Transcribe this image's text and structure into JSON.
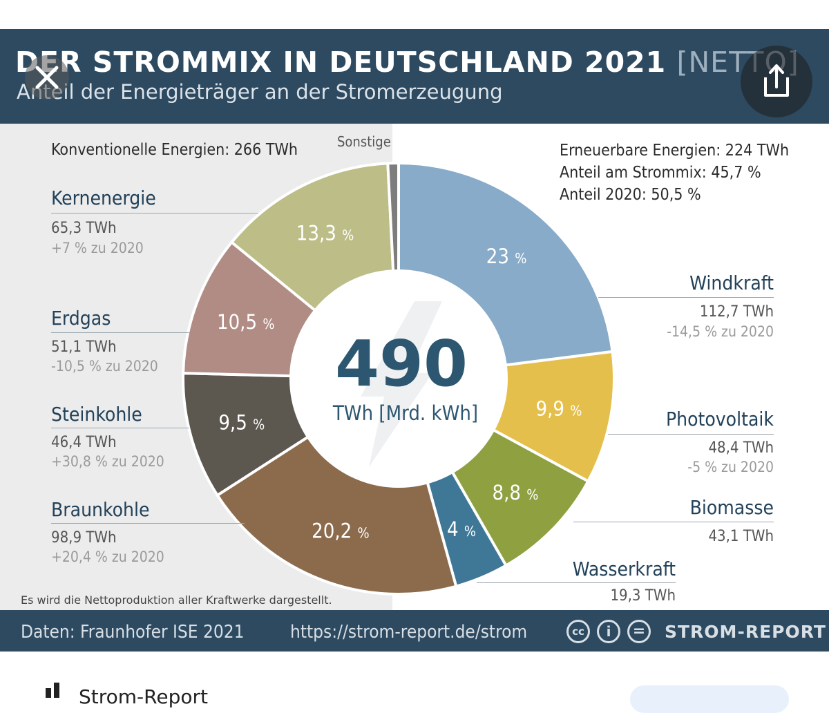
{
  "header": {
    "title": "DER STROMMIX IN DEUTSCHLAND 2021",
    "title_suffix": "[NETTO]",
    "subtitle": "Anteil der Energieträger an der Stromerzeugung"
  },
  "summary": {
    "conventional": "Konventionelle Energien: 266 TWh",
    "other_label": "Sonstige",
    "renewable": "Erneuerbare Energien: 224 TWh",
    "renewable_share": "Anteil am Strommix: 45,7 %",
    "renewable_share_2020": "Anteil 2020: 50,5 %"
  },
  "center": {
    "total": "490",
    "unit": "TWh [Mrd. kWh]"
  },
  "sources": {
    "kernenergie": {
      "name": "Kernenergie",
      "twh": "65,3 TWh",
      "change": "+7 % zu 2020"
    },
    "erdgas": {
      "name": "Erdgas",
      "twh": "51,1 TWh",
      "change": "-10,5 % zu 2020"
    },
    "steinkohle": {
      "name": "Steinkohle",
      "twh": "46,4 TWh",
      "change": "+30,8 % zu 2020"
    },
    "braunkohle": {
      "name": "Braunkohle",
      "twh": "98,9 TWh",
      "change": "+20,4 % zu 2020"
    },
    "windkraft": {
      "name": "Windkraft",
      "twh": "112,7 TWh",
      "change": "-14,5 % zu 2020"
    },
    "photovoltaik": {
      "name": "Photovoltaik",
      "twh": "48,4 TWh",
      "change": "-5 % zu 2020"
    },
    "biomasse": {
      "name": "Biomasse",
      "twh": "43,1 TWh"
    },
    "wasserkraft": {
      "name": "Wasserkraft",
      "twh": "19,3 TWh"
    }
  },
  "note": "Es wird die Nettoproduktion aller Kraftwerke dargestellt.",
  "footer": {
    "source": "Daten: Fraunhofer ISE 2021",
    "url": "https://strom-report.de/strom",
    "cc_icons": [
      "cc",
      "i",
      "="
    ],
    "brand": "STROM-REPORT"
  },
  "below": {
    "app_name": "Strom-Report"
  },
  "chart_data": {
    "type": "pie",
    "variant": "donut",
    "title": "DER STROMMIX IN DEUTSCHLAND 2021 [NETTO]",
    "total_twh": 490,
    "slices": [
      {
        "key": "windkraft",
        "label": "Windkraft",
        "percent": 23.0,
        "percent_label": "23",
        "twh": 112.7,
        "color": "#87abc8"
      },
      {
        "key": "photovoltaik",
        "label": "Photovoltaik",
        "percent": 9.9,
        "percent_label": "9,9",
        "twh": 48.4,
        "color": "#e5bf4c"
      },
      {
        "key": "biomasse",
        "label": "Biomasse",
        "percent": 8.8,
        "percent_label": "8,8",
        "twh": 43.1,
        "color": "#8ea03f"
      },
      {
        "key": "wasserkraft",
        "label": "Wasserkraft",
        "percent": 4.0,
        "percent_label": "4",
        "twh": 19.3,
        "color": "#3e7896"
      },
      {
        "key": "braunkohle",
        "label": "Braunkohle",
        "percent": 20.2,
        "percent_label": "20,2",
        "twh": 98.9,
        "color": "#8c6b4d"
      },
      {
        "key": "steinkohle",
        "label": "Steinkohle",
        "percent": 9.5,
        "percent_label": "9,5",
        "twh": 46.4,
        "color": "#5c5850"
      },
      {
        "key": "erdgas",
        "label": "Erdgas",
        "percent": 10.5,
        "percent_label": "10,5",
        "twh": 51.1,
        "color": "#b08c84"
      },
      {
        "key": "kernenergie",
        "label": "Kernenergie",
        "percent": 13.3,
        "percent_label": "13,3",
        "twh": 65.3,
        "color": "#bdbd88"
      },
      {
        "key": "sonstige",
        "label": "Sonstige",
        "percent": 0.8,
        "percent_label": "",
        "twh": null,
        "color": "#7d7d7d"
      }
    ],
    "percent_suffix": "%"
  }
}
